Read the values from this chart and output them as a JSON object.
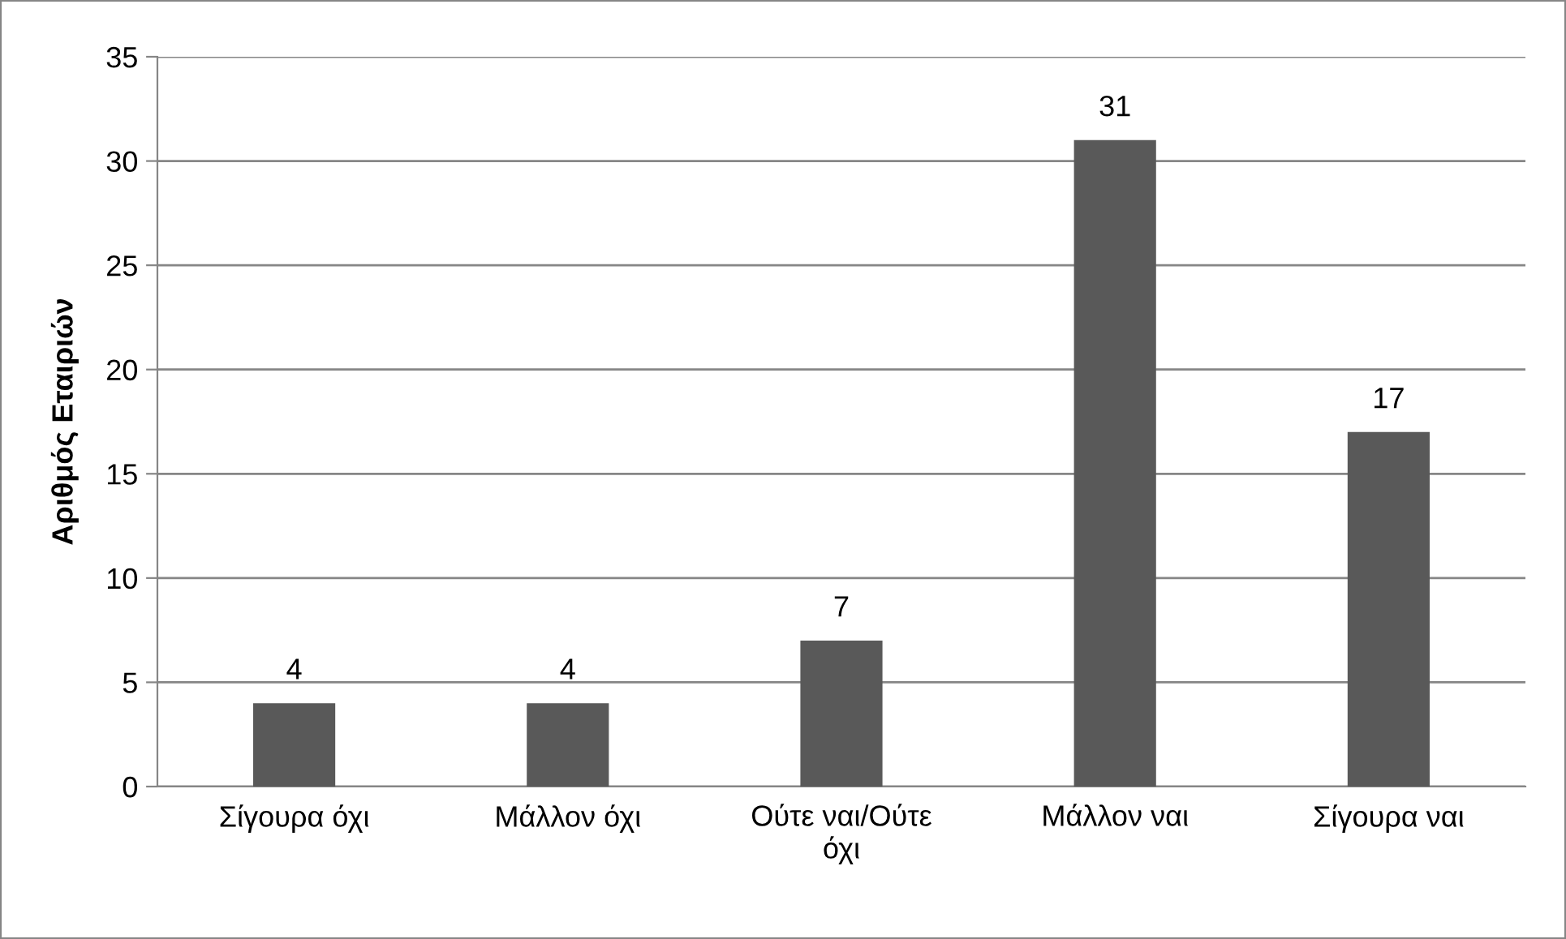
{
  "chart_data": {
    "type": "bar",
    "ylabel": "Αριθμός Εταιριών",
    "categories": [
      "Σίγουρα όχι",
      "Μάλλον όχι",
      "Ούτε ναι/Ούτε όχι",
      "Μάλλον ναι",
      "Σίγουρα ναι"
    ],
    "values": [
      4,
      4,
      7,
      31,
      17
    ],
    "color": "#595959",
    "ylim": [
      0,
      35
    ],
    "yticks": [
      0,
      5,
      10,
      15,
      20,
      25,
      30,
      35
    ],
    "grid": "y",
    "data_labels": true
  }
}
